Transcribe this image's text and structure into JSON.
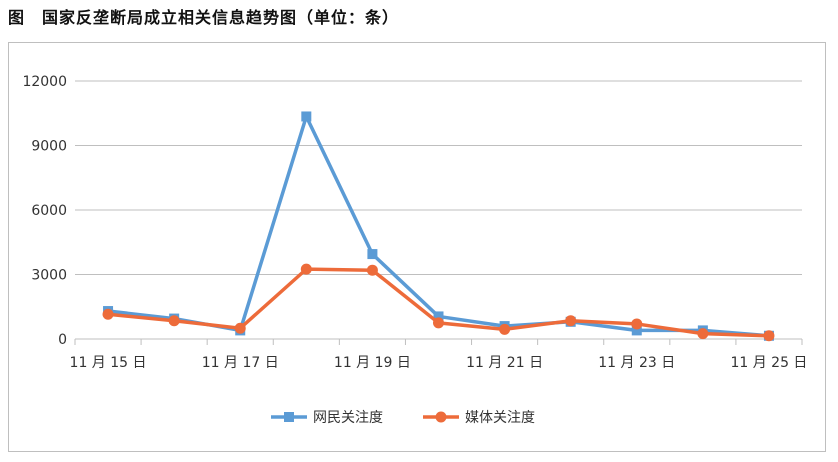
{
  "figure": {
    "title": "图　国家反垄断局成立相关信息趋势图（单位：条）"
  },
  "chart_data": {
    "type": "line",
    "title": "",
    "xlabel": "",
    "ylabel": "",
    "ylim": [
      0,
      12000
    ],
    "yticks": [
      0,
      3000,
      6000,
      9000,
      12000
    ],
    "ytick_labels": [
      "0",
      "3000",
      "6000",
      "9000",
      "12000"
    ],
    "categories": [
      "11月15日",
      "11月16日",
      "11月17日",
      "11月18日",
      "11月19日",
      "11月20日",
      "11月21日",
      "11月22日",
      "11月23日",
      "11月24日",
      "11月25日"
    ],
    "xtick_labels": [
      "11 月 15 日",
      "11 月 17 日",
      "11 月 19 日",
      "11 月 21 日",
      "11 月 23 日",
      "11 月 25 日"
    ],
    "grid": true,
    "legend_position": "bottom",
    "series": [
      {
        "name": "网民关注度",
        "color": "#5b9bd5",
        "marker": "square",
        "values": [
          1300,
          950,
          400,
          10350,
          3950,
          1050,
          600,
          800,
          400,
          400,
          150
        ]
      },
      {
        "name": "媒体关注度",
        "color": "#ed6b3a",
        "marker": "circle",
        "values": [
          1150,
          850,
          500,
          3250,
          3200,
          750,
          450,
          850,
          700,
          250,
          150
        ]
      }
    ]
  }
}
